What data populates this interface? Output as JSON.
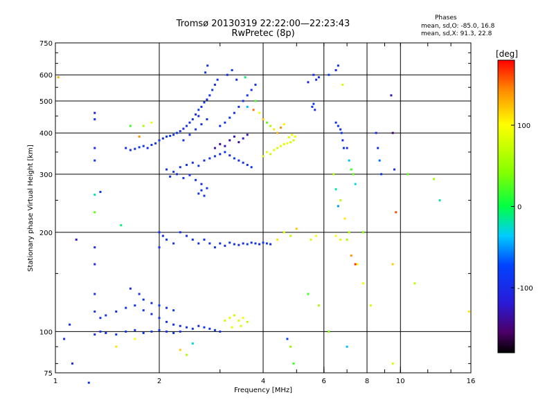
{
  "title": {
    "line1": "Tromsø 20130319 22:22:00—22:23:43",
    "line2": "RwPretec (8p)"
  },
  "phases": {
    "title": "Phases",
    "o_line": "mean, sd,O: -85.0, 16.8",
    "x_line": "mean, sd,X:  91.3, 22.8"
  },
  "chart_data": {
    "type": "scatter",
    "title": "Tromsø 20130319 22:22:00—22:23:43",
    "subtitle": "RwPretec (8p)",
    "xlabel": "Frequency [MHz]",
    "ylabel": "Stationary phase Virtual Height [km]",
    "x_scale": "log",
    "y_scale": "log",
    "xlim": [
      1,
      16
    ],
    "ylim": [
      75,
      750
    ],
    "x_ticks": [
      1,
      2,
      4,
      6,
      8,
      10,
      16
    ],
    "x_tick_labels": [
      "1",
      "2",
      "4",
      "6",
      "8",
      "10",
      "16"
    ],
    "y_ticks": [
      75,
      100,
      200,
      300,
      400,
      500,
      600,
      750
    ],
    "y_tick_labels": [
      "75",
      "100",
      "200",
      "300",
      "400",
      "500",
      "600",
      "750"
    ],
    "grid": true,
    "colorbar": {
      "label": "[deg]",
      "min": -180,
      "max": 180,
      "ticks": [
        100,
        0,
        -100
      ],
      "tick_labels": [
        "100",
        "0",
        "-100"
      ]
    },
    "points": [
      [
        1.6,
        360,
        -95
      ],
      [
        1.65,
        355,
        -90
      ],
      [
        1.7,
        358,
        -98
      ],
      [
        1.75,
        362,
        -85
      ],
      [
        1.8,
        365,
        -92
      ],
      [
        1.85,
        360,
        -100
      ],
      [
        1.9,
        368,
        -88
      ],
      [
        1.95,
        372,
        -95
      ],
      [
        2.0,
        380,
        -90
      ],
      [
        2.05,
        385,
        -97
      ],
      [
        2.1,
        390,
        -86
      ],
      [
        2.15,
        392,
        -93
      ],
      [
        2.2,
        395,
        -99
      ],
      [
        2.25,
        400,
        -84
      ],
      [
        2.3,
        405,
        -91
      ],
      [
        2.35,
        412,
        -96
      ],
      [
        2.4,
        420,
        -88
      ],
      [
        2.45,
        430,
        -94
      ],
      [
        2.5,
        440,
        -90
      ],
      [
        2.55,
        455,
        -98
      ],
      [
        2.6,
        470,
        -87
      ],
      [
        2.65,
        480,
        -93
      ],
      [
        2.7,
        495,
        -89
      ],
      [
        2.75,
        505,
        -96
      ],
      [
        2.8,
        520,
        -91
      ],
      [
        2.85,
        540,
        -85
      ],
      [
        2.9,
        560,
        -97
      ],
      [
        2.95,
        580,
        -90
      ],
      [
        2.72,
        610,
        -88
      ],
      [
        2.76,
        640,
        -95
      ],
      [
        2.35,
        380,
        -92
      ],
      [
        2.45,
        395,
        -97
      ],
      [
        2.55,
        410,
        -86
      ],
      [
        2.65,
        425,
        -94
      ],
      [
        2.75,
        440,
        -89
      ],
      [
        2.6,
        450,
        -100
      ],
      [
        2.1,
        310,
        -93
      ],
      [
        2.2,
        305,
        -88
      ],
      [
        2.3,
        315,
        -96
      ],
      [
        2.4,
        320,
        -90
      ],
      [
        2.5,
        325,
        -98
      ],
      [
        2.6,
        318,
        -85
      ],
      [
        2.7,
        330,
        -92
      ],
      [
        2.8,
        335,
        -97
      ],
      [
        2.9,
        340,
        -89
      ],
      [
        3.0,
        345,
        -95
      ],
      [
        3.1,
        350,
        -91
      ],
      [
        3.2,
        342,
        -99
      ],
      [
        3.3,
        335,
        -87
      ],
      [
        3.4,
        330,
        -94
      ],
      [
        3.5,
        325,
        -90
      ],
      [
        3.6,
        320,
        -96
      ],
      [
        3.7,
        315,
        -88
      ],
      [
        2.15,
        295,
        -93
      ],
      [
        2.25,
        300,
        -97
      ],
      [
        2.35,
        292,
        -86
      ],
      [
        2.45,
        298,
        -94
      ],
      [
        2.55,
        288,
        -90
      ],
      [
        2.65,
        280,
        -99
      ],
      [
        2.75,
        272,
        -92
      ],
      [
        2.6,
        262,
        -88
      ],
      [
        2.7,
        258,
        -95
      ],
      [
        2.65,
        268,
        -90
      ],
      [
        2.9,
        360,
        -130
      ],
      [
        3.0,
        370,
        -140
      ],
      [
        3.1,
        365,
        -125
      ],
      [
        3.2,
        380,
        -135
      ],
      [
        3.3,
        390,
        -128
      ],
      [
        3.4,
        375,
        -138
      ],
      [
        3.5,
        385,
        -120
      ],
      [
        3.6,
        395,
        -132
      ],
      [
        3.0,
        420,
        -92
      ],
      [
        3.1,
        430,
        -98
      ],
      [
        3.2,
        445,
        -86
      ],
      [
        3.3,
        460,
        -94
      ],
      [
        3.4,
        480,
        -90
      ],
      [
        3.5,
        500,
        -97
      ],
      [
        3.6,
        520,
        -88
      ],
      [
        3.7,
        540,
        -95
      ],
      [
        3.8,
        560,
        -91
      ],
      [
        3.15,
        600,
        -96
      ],
      [
        3.25,
        620,
        -89
      ],
      [
        3.35,
        580,
        -93
      ],
      [
        4.0,
        340,
        80
      ],
      [
        4.1,
        350,
        85
      ],
      [
        4.2,
        345,
        78
      ],
      [
        4.3,
        355,
        90
      ],
      [
        4.4,
        360,
        82
      ],
      [
        4.5,
        365,
        88
      ],
      [
        4.6,
        370,
        84
      ],
      [
        4.7,
        372,
        92
      ],
      [
        4.8,
        375,
        86
      ],
      [
        4.9,
        380,
        80
      ],
      [
        4.95,
        390,
        95
      ],
      [
        4.85,
        395,
        89
      ],
      [
        4.75,
        388,
        83
      ],
      [
        4.2,
        420,
        60
      ],
      [
        4.3,
        410,
        110
      ],
      [
        4.4,
        400,
        130
      ],
      [
        4.5,
        415,
        140
      ],
      [
        4.6,
        425,
        105
      ],
      [
        4.1,
        430,
        30
      ],
      [
        4.0,
        440,
        120
      ],
      [
        3.9,
        460,
        100
      ],
      [
        3.75,
        470,
        150
      ],
      [
        3.6,
        480,
        -40
      ],
      [
        3.8,
        500,
        20
      ],
      [
        3.55,
        590,
        -10
      ],
      [
        1.3,
        460,
        -110
      ],
      [
        1.3,
        440,
        -95
      ],
      [
        1.3,
        360,
        -100
      ],
      [
        1.3,
        330,
        -85
      ],
      [
        1.3,
        260,
        -20
      ],
      [
        1.35,
        265,
        -90
      ],
      [
        1.3,
        230,
        30
      ],
      [
        1.3,
        180,
        -100
      ],
      [
        1.3,
        160,
        -110
      ],
      [
        1.3,
        130,
        -95
      ],
      [
        1.3,
        115,
        -90
      ],
      [
        1.3,
        98,
        -100
      ],
      [
        1.15,
        190,
        -120
      ],
      [
        1.1,
        105,
        -95
      ],
      [
        1.06,
        95,
        -100
      ],
      [
        1.02,
        590,
        130
      ],
      [
        1.12,
        80,
        -100
      ],
      [
        1.25,
        70,
        -90
      ],
      [
        1.55,
        210,
        -10
      ],
      [
        1.65,
        420,
        20
      ],
      [
        1.8,
        420,
        60
      ],
      [
        1.9,
        430,
        90
      ],
      [
        1.75,
        390,
        140
      ],
      [
        2.0,
        200,
        -92
      ],
      [
        2.05,
        195,
        -97
      ],
      [
        2.1,
        190,
        -86
      ],
      [
        2.2,
        185,
        -94
      ],
      [
        2.3,
        200,
        -90
      ],
      [
        2.4,
        195,
        -98
      ],
      [
        2.5,
        190,
        -88
      ],
      [
        2.6,
        185,
        -95
      ],
      [
        2.7,
        190,
        -91
      ],
      [
        2.8,
        185,
        -96
      ],
      [
        2.9,
        180,
        -89
      ],
      [
        2.0,
        180,
        -93
      ],
      [
        3.0,
        185,
        -92
      ],
      [
        3.1,
        182,
        -98
      ],
      [
        3.2,
        186,
        -86
      ],
      [
        3.3,
        184,
        -94
      ],
      [
        3.4,
        183,
        -90
      ],
      [
        3.5,
        185,
        -97
      ],
      [
        3.6,
        184,
        -88
      ],
      [
        3.7,
        186,
        -95
      ],
      [
        3.8,
        185,
        -91
      ],
      [
        3.9,
        184,
        -96
      ],
      [
        4.0,
        186,
        -89
      ],
      [
        4.1,
        185,
        -93
      ],
      [
        4.2,
        184,
        -99
      ],
      [
        4.4,
        190,
        110
      ],
      [
        4.6,
        200,
        90
      ],
      [
        4.8,
        195,
        70
      ],
      [
        5.0,
        205,
        120
      ],
      [
        5.5,
        190,
        80
      ],
      [
        5.7,
        195,
        95
      ],
      [
        6.5,
        195,
        100
      ],
      [
        6.7,
        190,
        85
      ],
      [
        7.0,
        190,
        60
      ],
      [
        7.2,
        170,
        140
      ],
      [
        7.4,
        160,
        170
      ],
      [
        7.8,
        200,
        40
      ],
      [
        1.35,
        110,
        -95
      ],
      [
        1.4,
        112,
        -92
      ],
      [
        1.5,
        115,
        -98
      ],
      [
        1.6,
        118,
        -86
      ],
      [
        1.7,
        120,
        -94
      ],
      [
        1.8,
        116,
        -90
      ],
      [
        1.9,
        113,
        -97
      ],
      [
        2.0,
        110,
        -88
      ],
      [
        2.1,
        107,
        -95
      ],
      [
        2.2,
        105,
        -91
      ],
      [
        2.3,
        104,
        -96
      ],
      [
        2.4,
        103,
        -89
      ],
      [
        2.5,
        102,
        -93
      ],
      [
        2.6,
        104,
        -99
      ],
      [
        2.7,
        103,
        -87
      ],
      [
        2.8,
        102,
        -94
      ],
      [
        2.9,
        101,
        -90
      ],
      [
        3.0,
        100,
        -96
      ],
      [
        1.6,
        100,
        -92
      ],
      [
        1.7,
        101,
        -98
      ],
      [
        1.8,
        99,
        -86
      ],
      [
        1.9,
        100,
        -94
      ],
      [
        2.0,
        101,
        -90
      ],
      [
        2.1,
        100,
        -97
      ],
      [
        2.2,
        99,
        -88
      ],
      [
        2.3,
        100,
        -95
      ],
      [
        1.5,
        98,
        -91
      ],
      [
        1.4,
        99,
        -96
      ],
      [
        1.35,
        100,
        -89
      ],
      [
        1.8,
        125,
        -93
      ],
      [
        1.9,
        122,
        -99
      ],
      [
        2.0,
        120,
        -87
      ],
      [
        2.1,
        118,
        -94
      ],
      [
        2.2,
        116,
        -90
      ],
      [
        1.75,
        130,
        -95
      ],
      [
        1.65,
        135,
        -100
      ],
      [
        3.1,
        108,
        80
      ],
      [
        3.2,
        110,
        90
      ],
      [
        3.3,
        112,
        75
      ],
      [
        3.4,
        108,
        85
      ],
      [
        3.5,
        110,
        95
      ],
      [
        3.6,
        107,
        70
      ],
      [
        3.25,
        103,
        88
      ],
      [
        3.45,
        104,
        82
      ],
      [
        1.7,
        95,
        100
      ],
      [
        1.5,
        90,
        110
      ],
      [
        2.3,
        88,
        120
      ],
      [
        2.5,
        92,
        -30
      ],
      [
        2.4,
        85,
        60
      ],
      [
        5.6,
        600,
        -95
      ],
      [
        5.7,
        580,
        -100
      ],
      [
        5.55,
        480,
        -90
      ],
      [
        5.65,
        470,
        -97
      ],
      [
        5.6,
        490,
        -88
      ],
      [
        5.8,
        590,
        -92
      ],
      [
        5.4,
        570,
        -110
      ],
      [
        6.6,
        640,
        -95
      ],
      [
        6.5,
        620,
        -100
      ],
      [
        6.2,
        600,
        -85
      ],
      [
        6.8,
        560,
        80
      ],
      [
        6.5,
        430,
        -100
      ],
      [
        6.6,
        420,
        -90
      ],
      [
        6.7,
        410,
        -95
      ],
      [
        6.75,
        400,
        -85
      ],
      [
        6.8,
        380,
        -98
      ],
      [
        6.85,
        360,
        -92
      ],
      [
        7.0,
        360,
        -100
      ],
      [
        7.1,
        330,
        -40
      ],
      [
        7.2,
        310,
        20
      ],
      [
        7.3,
        300,
        30
      ],
      [
        7.4,
        280,
        -30
      ],
      [
        6.4,
        300,
        60
      ],
      [
        6.5,
        270,
        -20
      ],
      [
        6.6,
        240,
        -50
      ],
      [
        6.7,
        250,
        70
      ],
      [
        6.9,
        220,
        110
      ],
      [
        7.1,
        200,
        60
      ],
      [
        7.5,
        160,
        90
      ],
      [
        7.8,
        140,
        100
      ],
      [
        8.2,
        120,
        80
      ],
      [
        6.2,
        100,
        40
      ],
      [
        5.8,
        120,
        60
      ],
      [
        5.4,
        130,
        20
      ],
      [
        8.5,
        400,
        -100
      ],
      [
        8.6,
        360,
        -95
      ],
      [
        8.7,
        330,
        -60
      ],
      [
        8.8,
        300,
        -90
      ],
      [
        9.4,
        520,
        -130
      ],
      [
        9.5,
        400,
        -150
      ],
      [
        9.6,
        310,
        -95
      ],
      [
        9.7,
        230,
        160
      ],
      [
        9.5,
        160,
        120
      ],
      [
        10.5,
        300,
        30
      ],
      [
        11.0,
        140,
        70
      ],
      [
        12.5,
        290,
        60
      ],
      [
        13.0,
        250,
        -20
      ],
      [
        15.8,
        115,
        110
      ],
      [
        4.8,
        90,
        50
      ],
      [
        4.9,
        80,
        20
      ],
      [
        4.7,
        95,
        -80
      ],
      [
        7.0,
        90,
        -40
      ],
      [
        9.5,
        80,
        80
      ]
    ]
  }
}
